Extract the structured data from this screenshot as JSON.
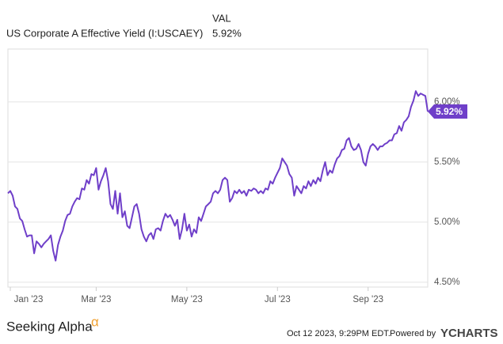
{
  "chart_data": {
    "type": "line",
    "header_label": "VAL",
    "series": [
      {
        "name": "US Corporate A Effective Yield (I:USCAEY)",
        "color": "#6f3fc9",
        "current": "5.92%",
        "values": [
          5.24,
          5.26,
          5.22,
          5.13,
          5.11,
          5.03,
          5.01,
          4.94,
          4.88,
          4.89,
          4.89,
          4.74,
          4.84,
          4.82,
          4.79,
          4.82,
          4.84,
          4.86,
          4.89,
          4.76,
          4.68,
          4.81,
          4.88,
          4.93,
          5.01,
          5.06,
          5.07,
          5.13,
          5.17,
          5.2,
          5.19,
          5.28,
          5.27,
          5.35,
          5.32,
          5.4,
          5.39,
          5.45,
          5.27,
          5.34,
          5.39,
          5.45,
          5.34,
          5.15,
          5.11,
          5.26,
          5.07,
          5.24,
          5.04,
          5.09,
          4.97,
          4.95,
          5.04,
          5.13,
          5.15,
          5.07,
          4.94,
          4.88,
          4.84,
          4.89,
          4.91,
          4.86,
          4.94,
          4.95,
          4.93,
          5.01,
          5.07,
          5.04,
          5.06,
          5.02,
          4.97,
          5.02,
          4.86,
          4.94,
          5.07,
          4.93,
          4.98,
          4.88,
          4.94,
          4.91,
          5.04,
          5.01,
          5.07,
          5.13,
          5.15,
          5.17,
          5.24,
          5.26,
          5.24,
          5.27,
          5.35,
          5.37,
          5.35,
          5.17,
          5.2,
          5.26,
          5.24,
          5.27,
          5.24,
          5.26,
          5.22,
          5.27,
          5.26,
          5.28,
          5.27,
          5.24,
          5.26,
          5.24,
          5.28,
          5.27,
          5.34,
          5.32,
          5.37,
          5.41,
          5.45,
          5.53,
          5.5,
          5.47,
          5.4,
          5.37,
          5.22,
          5.3,
          5.27,
          5.24,
          5.3,
          5.28,
          5.34,
          5.3,
          5.35,
          5.32,
          5.37,
          5.34,
          5.43,
          5.5,
          5.39,
          5.43,
          5.41,
          5.48,
          5.53,
          5.55,
          5.6,
          5.61,
          5.68,
          5.7,
          5.63,
          5.6,
          5.61,
          5.65,
          5.6,
          5.5,
          5.47,
          5.57,
          5.63,
          5.65,
          5.63,
          5.6,
          5.63,
          5.63,
          5.65,
          5.66,
          5.68,
          5.68,
          5.73,
          5.74,
          5.8,
          5.76,
          5.83,
          5.85,
          5.88,
          5.96,
          6.01,
          6.09,
          6.05,
          6.07,
          6.06,
          6.05,
          5.92
        ]
      }
    ],
    "latest": {
      "value": 5.92,
      "label": "5.92%"
    },
    "xlim": [
      0,
      176
    ],
    "xticks": [
      {
        "value": 1,
        "label": "Jan '23"
      },
      {
        "value": 37,
        "label": "Mar '23"
      },
      {
        "value": 75,
        "label": "May '23"
      },
      {
        "value": 113,
        "label": "Jul '23"
      },
      {
        "value": 151,
        "label": "Sep '23"
      }
    ],
    "ylim": [
      4.46,
      6.44
    ],
    "yticks": [
      {
        "value": 4.5,
        "label": "4.50%"
      },
      {
        "value": 5,
        "label": "5.00%"
      },
      {
        "value": 5.5,
        "label": "5.50%"
      },
      {
        "value": 6,
        "label": "6.00%"
      }
    ],
    "grid": true
  },
  "footer": {
    "brand": "Seeking Alpha",
    "brand_mark": "α",
    "timestamp": "Oct 12 2023, 9:29PM EDT.",
    "powered": "Powered by",
    "provider": "YCHARTS"
  }
}
